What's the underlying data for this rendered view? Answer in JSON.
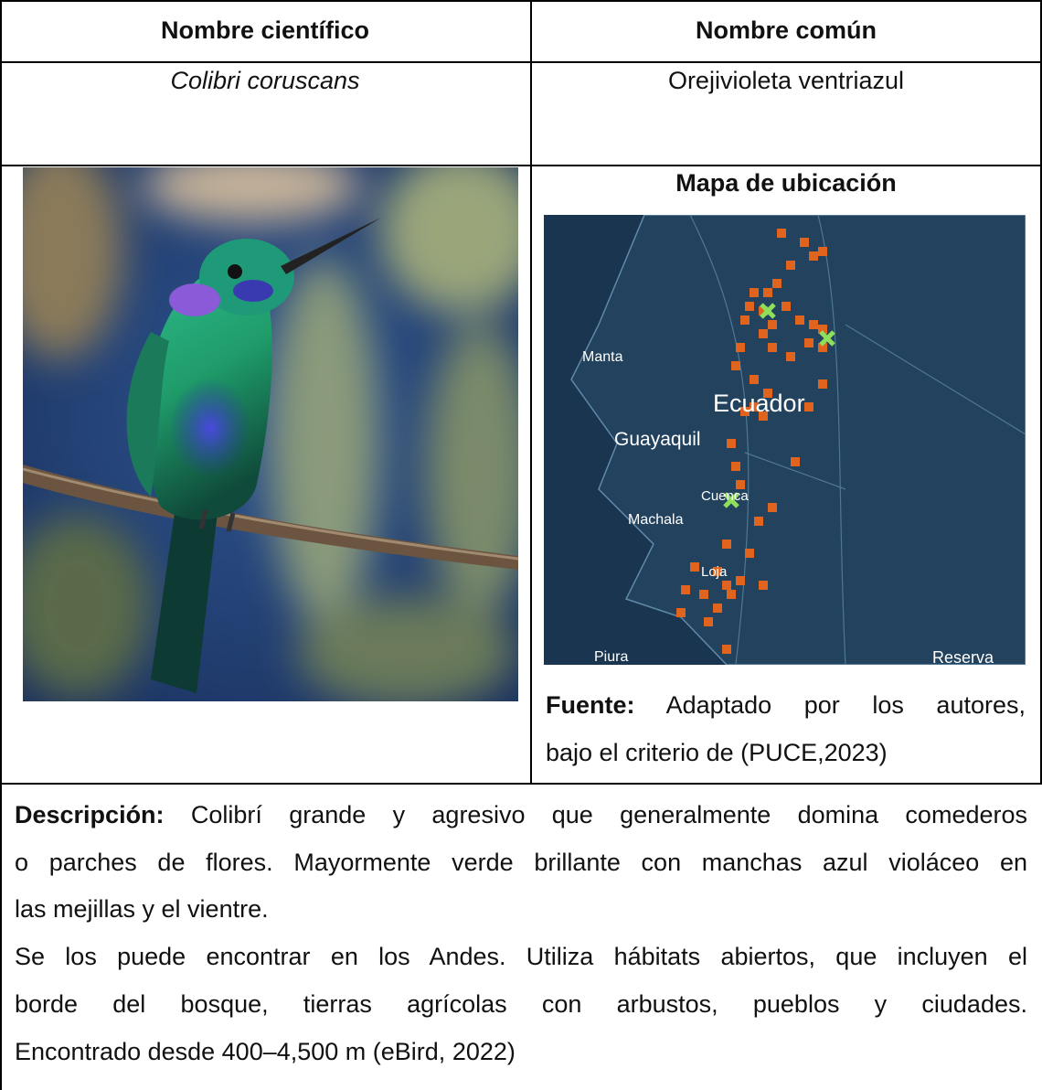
{
  "table": {
    "headers": [
      "Nombre científico",
      "Nombre común"
    ],
    "scientific_name": "Colibri coruscans",
    "common_name": "Orejivioleta ventriazul"
  },
  "map": {
    "title": "Mapa de ubicación",
    "labels": [
      "Manta",
      "Ecuador",
      "Guayaquil",
      "Cuenca",
      "Machala",
      "Loja",
      "Piura",
      "Reserva"
    ]
  },
  "source": {
    "label": "Fuente:",
    "lines": [
      "Adaptado por los autores,",
      "bajo el criterio de (PUCE,2023)"
    ]
  },
  "description": {
    "label": "Descripción:",
    "lines": [
      "Colibrí grande y agresivo que generalmente domina comederos",
      "o parches de flores. Mayormente verde brillante con manchas azul violáceo en",
      "las mejillas y el vientre.",
      "Se los puede encontrar en los Andes. Utiliza hábitats abiertos, que incluyen el",
      "borde del bosque, tierras agrícolas con arbustos, pueblos y ciudades.",
      "Encontrado desde 400–4,500 m (eBird, 2022)"
    ]
  }
}
